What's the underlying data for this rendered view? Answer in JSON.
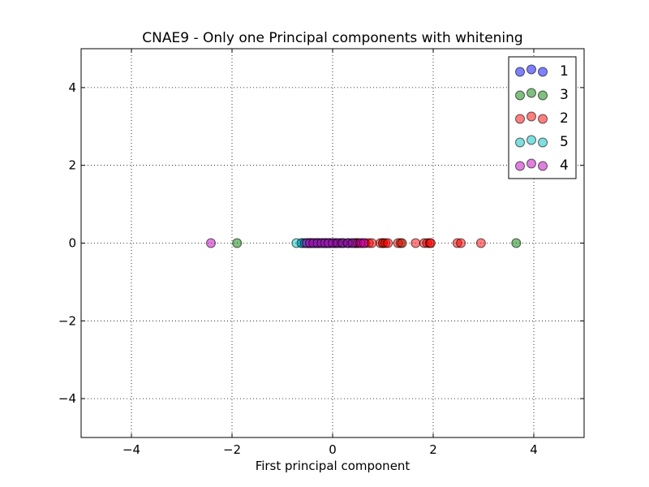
{
  "chart_data": {
    "type": "scatter",
    "title": "CNAE9 - Only one Principal components with whitening",
    "xlabel": "First principal component",
    "ylabel": "",
    "xlim": [
      -5,
      5
    ],
    "ylim": [
      -5,
      5
    ],
    "xticks": [
      -4,
      -2,
      0,
      2,
      4
    ],
    "yticks": [
      -4,
      -2,
      0,
      2,
      4
    ],
    "xtick_labels": [
      "−4",
      "−2",
      "0",
      "2",
      "4"
    ],
    "ytick_labels": [
      "−4",
      "−2",
      "0",
      "2",
      "4"
    ],
    "grid": true,
    "legend_position": "top-right",
    "series": [
      {
        "name": "1",
        "color": "#0000ff",
        "x": [
          -0.6,
          -0.5,
          -0.42,
          -0.35,
          -0.28,
          -0.2,
          -0.12,
          -0.05,
          0.02,
          0.08,
          0.15,
          0.22,
          0.3,
          0.38,
          0.45,
          0.5
        ]
      },
      {
        "name": "3",
        "color": "#008000",
        "x": [
          -1.9,
          -0.45,
          -0.3,
          -0.15,
          -0.05,
          0.05,
          0.18,
          0.32,
          0.45,
          1.0,
          1.35,
          3.65
        ]
      },
      {
        "name": "2",
        "color": "#ff0000",
        "x": [
          0.5,
          0.58,
          0.65,
          0.72,
          0.78,
          0.95,
          1.0,
          1.05,
          1.1,
          1.3,
          1.38,
          1.65,
          1.82,
          1.88,
          1.93,
          1.95,
          2.48,
          2.55,
          2.95
        ]
      },
      {
        "name": "5",
        "color": "#00bfbf",
        "x": [
          -0.72,
          -0.62,
          -0.55,
          -0.5,
          -0.45,
          -0.4,
          -0.33,
          -0.25,
          -0.18,
          -0.1
        ]
      },
      {
        "name": "4",
        "color": "#bf00bf",
        "x": [
          -2.42,
          -0.52,
          -0.45,
          -0.38,
          -0.3,
          -0.22,
          -0.15,
          -0.08,
          0.0,
          0.1,
          0.2,
          0.3,
          0.4,
          0.55,
          0.62
        ]
      }
    ]
  }
}
